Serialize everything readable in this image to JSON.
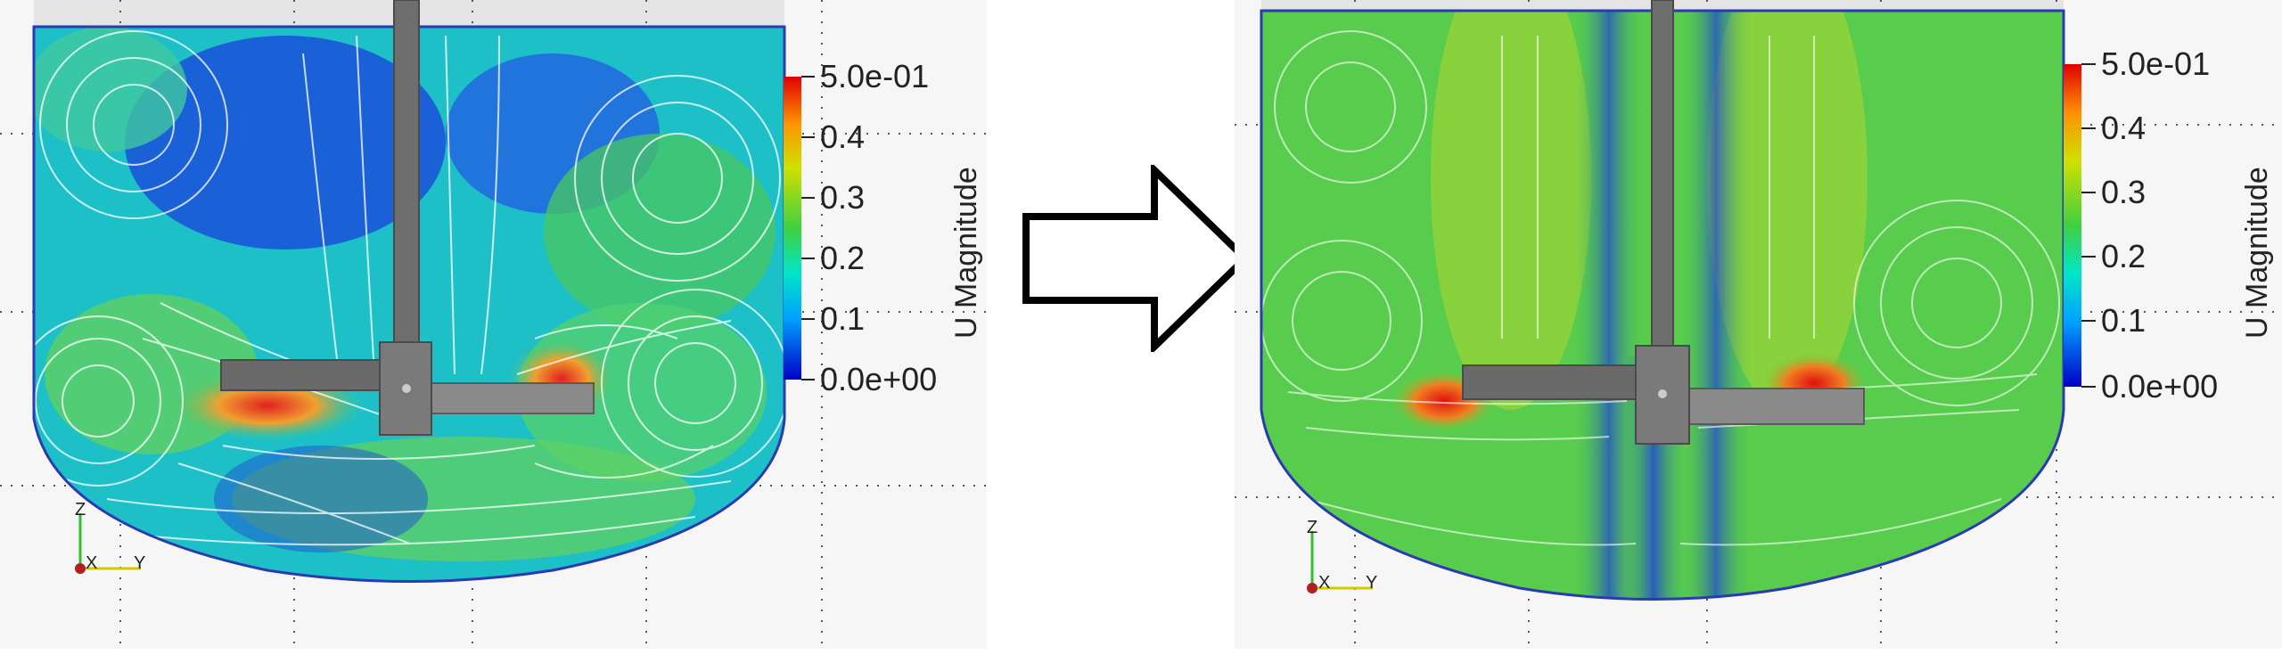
{
  "left_panel": {
    "colorbar": {
      "title": "U Magnitude",
      "ticks": [
        "5.0e-01",
        "0.4",
        "0.3",
        "0.2",
        "0.1",
        "0.0e+00"
      ],
      "range": [
        0,
        0.5
      ],
      "colors": [
        "#0000c8",
        "#00a0ff",
        "#00e6c8",
        "#40d040",
        "#d0e000",
        "#ff9000",
        "#e00000"
      ]
    },
    "axes": {
      "x": "X",
      "y": "Y",
      "z": "Z"
    }
  },
  "right_panel": {
    "colorbar": {
      "title": "U Magnitude",
      "ticks": [
        "5.0e-01",
        "0.4",
        "0.3",
        "0.2",
        "0.1",
        "0.0e+00"
      ],
      "range": [
        0,
        0.5
      ],
      "colors": [
        "#0000c8",
        "#00a0ff",
        "#00e6c8",
        "#40d040",
        "#d0e000",
        "#ff9000",
        "#e00000"
      ]
    },
    "axes": {
      "x": "X",
      "y": "Y",
      "z": "Z"
    }
  },
  "colors": {
    "background": "#f6f6f6",
    "shaft": "#6e6e6e",
    "arrow_stroke": "#000000"
  }
}
